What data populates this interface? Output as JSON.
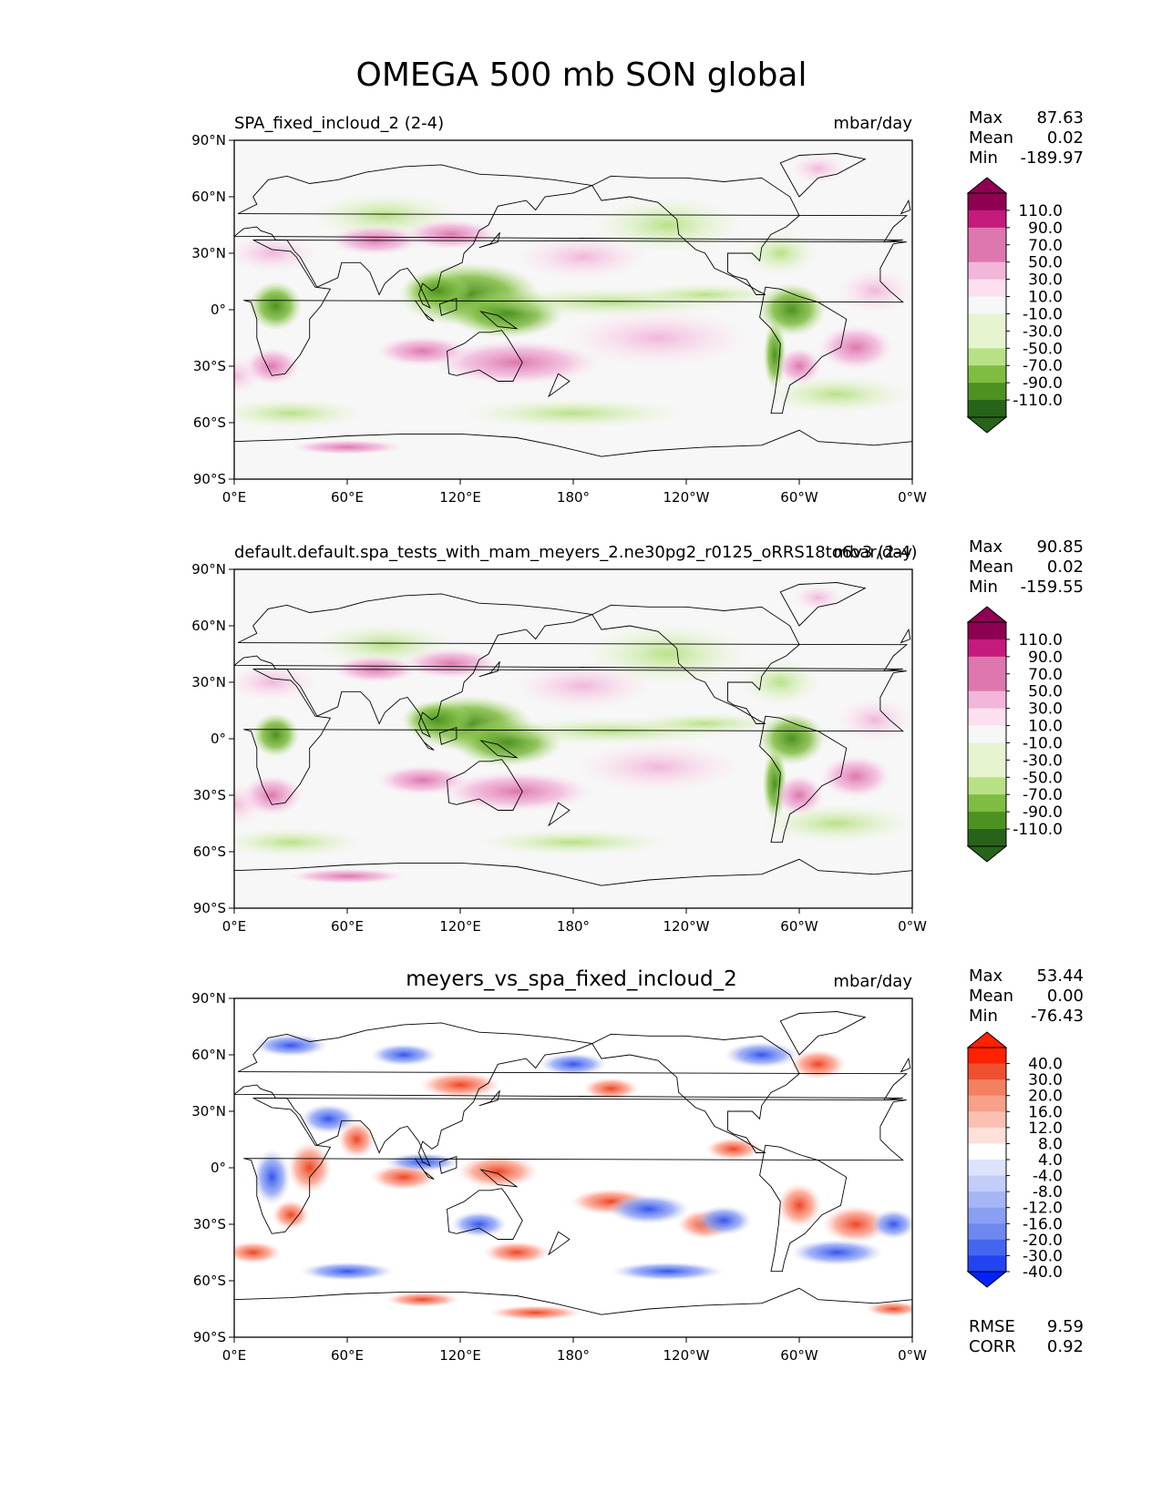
{
  "figure_title": "OMEGA 500 mb SON global",
  "colors": {
    "pink_dark": "#8e0152",
    "pink1": "#c51b7d",
    "pink2": "#de77ae",
    "pink3": "#f1b6da",
    "pink4": "#fde0ef",
    "neutral": "#f7f7f7",
    "green4": "#e6f5d0",
    "green3": "#b8e186",
    "green2": "#7fbc41",
    "green1": "#4d9221",
    "green_dark": "#276419",
    "red_dark": "#ff2200",
    "blue_dark": "#0022ff",
    "coast": "#000000"
  },
  "chart_data": [
    {
      "type": "heatmap",
      "panel": "test",
      "title_left": "SPA_fixed_incloud_2 (2-4)",
      "title_right": "mbar/day",
      "stats": {
        "max_label": "Max",
        "max": "87.63",
        "mean_label": "Mean",
        "mean": "0.02",
        "min_label": "Min",
        "min": "-189.97"
      },
      "colorbar_labels": [
        "110.0",
        "90.0",
        "70.0",
        "50.0",
        "30.0",
        "10.0",
        "-10.0",
        "-30.0",
        "-50.0",
        "-70.0",
        "-90.0",
        "-110.0"
      ],
      "x_ticks": [
        "0°E",
        "60°E",
        "120°E",
        "180°",
        "120°W",
        "60°W",
        "0°W"
      ],
      "y_ticks": [
        "90°N",
        "60°N",
        "30°N",
        "0°",
        "30°S",
        "60°S",
        "90°S"
      ],
      "xlim": [
        0,
        360
      ],
      "ylim": [
        -90,
        90
      ]
    },
    {
      "type": "heatmap",
      "panel": "reference",
      "title_left": "default.default.spa_tests_with_mam_meyers_2.ne30pg2_r0125_oRRS18to6v3 (2-4)",
      "title_right": "mbar/day",
      "stats": {
        "max_label": "Max",
        "max": "90.85",
        "mean_label": "Mean",
        "mean": "0.02",
        "min_label": "Min",
        "min": "-159.55"
      },
      "colorbar_labels": [
        "110.0",
        "90.0",
        "70.0",
        "50.0",
        "30.0",
        "10.0",
        "-10.0",
        "-30.0",
        "-50.0",
        "-70.0",
        "-90.0",
        "-110.0"
      ],
      "x_ticks": [
        "0°E",
        "60°E",
        "120°E",
        "180°",
        "120°W",
        "60°W",
        "0°W"
      ],
      "y_ticks": [
        "90°N",
        "60°N",
        "30°N",
        "0°",
        "30°S",
        "60°S",
        "90°S"
      ],
      "xlim": [
        0,
        360
      ],
      "ylim": [
        -90,
        90
      ]
    },
    {
      "type": "heatmap",
      "panel": "difference",
      "title_center": "meyers_vs_spa_fixed_incloud_2",
      "title_right": "mbar/day",
      "stats": {
        "max_label": "Max",
        "max": "53.44",
        "mean_label": "Mean",
        "mean": "0.00",
        "min_label": "Min",
        "min": "-76.43"
      },
      "colorbar_labels": [
        "40.0",
        "30.0",
        "20.0",
        "16.0",
        "12.0",
        "8.0",
        "4.0",
        "-4.0",
        "-8.0",
        "-12.0",
        "-16.0",
        "-20.0",
        "-30.0",
        "-40.0"
      ],
      "x_ticks": [
        "0°E",
        "60°E",
        "120°E",
        "180°",
        "120°W",
        "60°W",
        "0°W"
      ],
      "y_ticks": [
        "90°N",
        "60°N",
        "30°N",
        "0°",
        "30°S",
        "60°S",
        "90°S"
      ],
      "xlim": [
        0,
        360
      ],
      "ylim": [
        -90,
        90
      ],
      "extra_stats": {
        "rmse_label": "RMSE",
        "rmse": "9.59",
        "corr_label": "CORR",
        "corr": "0.92"
      }
    }
  ]
}
